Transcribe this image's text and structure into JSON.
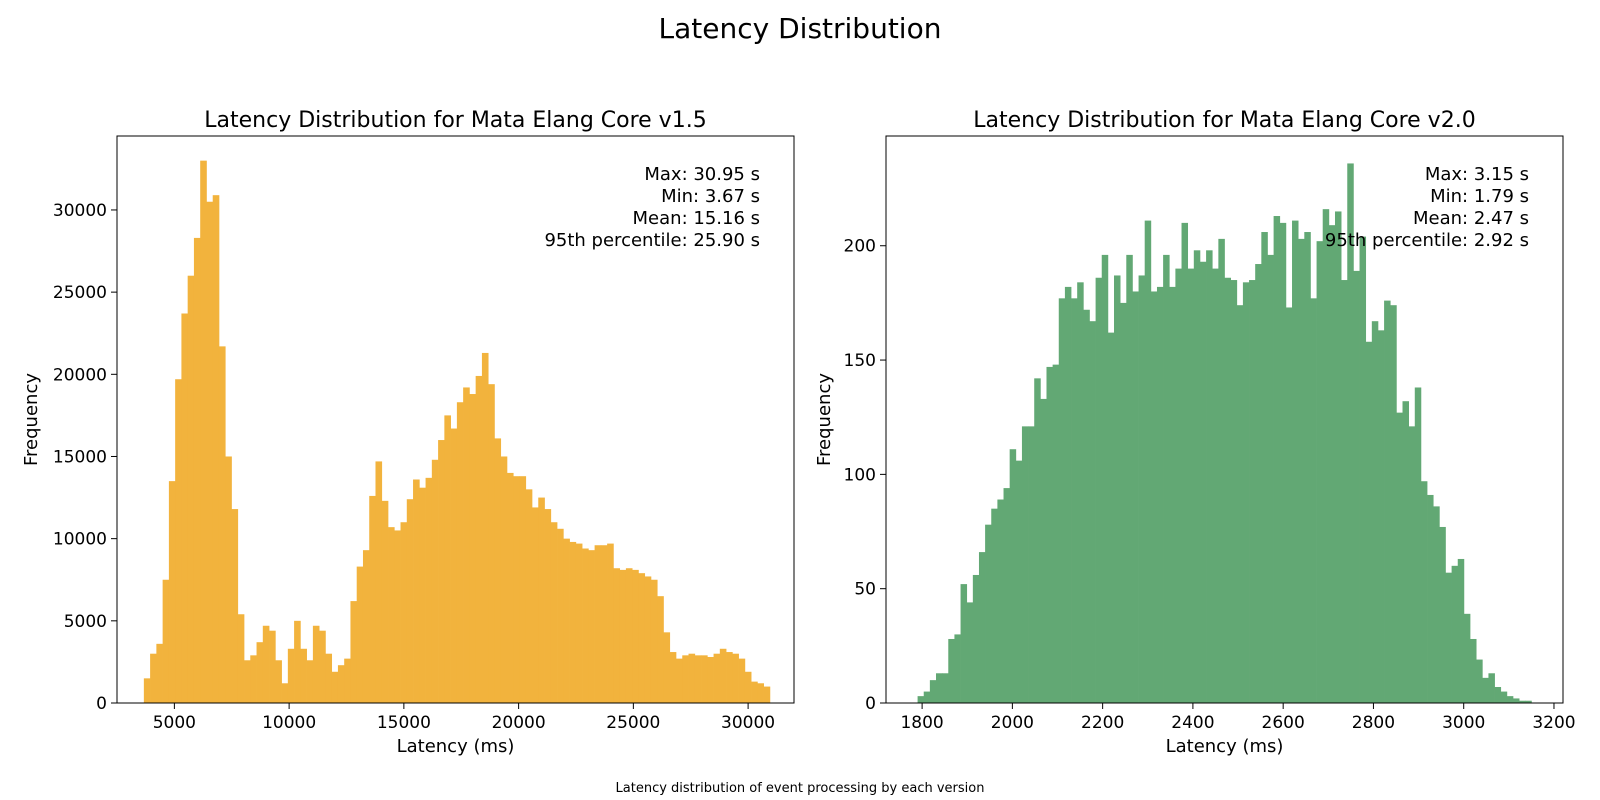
{
  "figure": {
    "title": "Latency Distribution",
    "caption": "Latency distribution of event processing by each version"
  },
  "chart_data": [
    {
      "type": "bar",
      "subtype": "histogram",
      "title": "Latency Distribution for Mata Elang Core v1.5",
      "xlabel": "Latency (ms)",
      "ylabel": "Frequency",
      "color": "#F2B33D",
      "xlim": [
        2500,
        32000
      ],
      "ylim": [
        0,
        34500
      ],
      "xticks": [
        5000,
        10000,
        15000,
        20000,
        25000,
        30000
      ],
      "xtick_labels": [
        "5000",
        "10000",
        "15000",
        "20000",
        "25000",
        "30000"
      ],
      "yticks": [
        0,
        5000,
        10000,
        15000,
        20000,
        25000,
        30000
      ],
      "ytick_labels": [
        "0",
        "5000",
        "10000",
        "15000",
        "20000",
        "25000",
        "30000"
      ],
      "bin_start": 3670,
      "bin_end": 30950,
      "values": [
        1500,
        3000,
        3600,
        7500,
        13500,
        19700,
        23700,
        26000,
        28300,
        33000,
        30500,
        30900,
        21700,
        15000,
        11800,
        5400,
        2600,
        2900,
        3700,
        4700,
        4400,
        2600,
        1200,
        3300,
        5000,
        3300,
        2600,
        4700,
        4400,
        3000,
        1900,
        2300,
        2700,
        6200,
        8300,
        9300,
        12600,
        14700,
        12300,
        10700,
        10500,
        11000,
        12400,
        13600,
        13100,
        13700,
        14800,
        16000,
        17500,
        16700,
        18300,
        19200,
        18800,
        19900,
        21300,
        19400,
        16100,
        15000,
        14000,
        13800,
        13800,
        13000,
        11900,
        12500,
        11800,
        11000,
        10600,
        10000,
        9800,
        9700,
        9400,
        9300,
        9600,
        9600,
        9700,
        8200,
        8100,
        8200,
        8100,
        7900,
        7700,
        7500,
        6500,
        4300,
        3100,
        2700,
        2900,
        3000,
        2900,
        2900,
        2800,
        3000,
        3300,
        3100,
        3000,
        2700,
        1900,
        1300,
        1200,
        1000
      ],
      "stats": [
        "Max: 30.95 s",
        "Min: 3.67 s",
        "Mean: 15.16 s",
        "95th percentile: 25.90 s"
      ]
    },
    {
      "type": "bar",
      "subtype": "histogram",
      "title": "Latency Distribution for Mata Elang Core v2.0",
      "xlabel": "Latency (ms)",
      "ylabel": "Frequency",
      "color": "#62A874",
      "xlim": [
        1720,
        3220
      ],
      "ylim": [
        0,
        248
      ],
      "xticks": [
        1800,
        2000,
        2200,
        2400,
        2600,
        2800,
        3000,
        3200
      ],
      "xtick_labels": [
        "1800",
        "2000",
        "2200",
        "2400",
        "2600",
        "2800",
        "3000",
        "3200"
      ],
      "yticks": [
        0,
        50,
        100,
        150,
        200
      ],
      "ytick_labels": [
        "0",
        "50",
        "100",
        "150",
        "200"
      ],
      "bin_start": 1790,
      "bin_end": 3150,
      "values": [
        3,
        5,
        10,
        13,
        13,
        28,
        30,
        52,
        44,
        56,
        66,
        78,
        85,
        89,
        94,
        111,
        106,
        121,
        121,
        142,
        133,
        147,
        148,
        177,
        182,
        177,
        184,
        172,
        167,
        186,
        196,
        162,
        187,
        175,
        196,
        180,
        187,
        211,
        180,
        182,
        196,
        182,
        190,
        210,
        190,
        198,
        193,
        198,
        190,
        203,
        186,
        185,
        174,
        184,
        185,
        192,
        206,
        196,
        213,
        210,
        173,
        211,
        203,
        206,
        177,
        202,
        216,
        209,
        215,
        185,
        236,
        189,
        204,
        158,
        167,
        163,
        176,
        174,
        127,
        132,
        121,
        138,
        97,
        91,
        86,
        77,
        57,
        60,
        63,
        39,
        28,
        19,
        11,
        13,
        7,
        5,
        3,
        2,
        1,
        1
      ],
      "stats": [
        "Max: 3.15 s",
        "Min: 1.79 s",
        "Mean: 2.47 s",
        "95th percentile: 2.92 s"
      ]
    }
  ]
}
